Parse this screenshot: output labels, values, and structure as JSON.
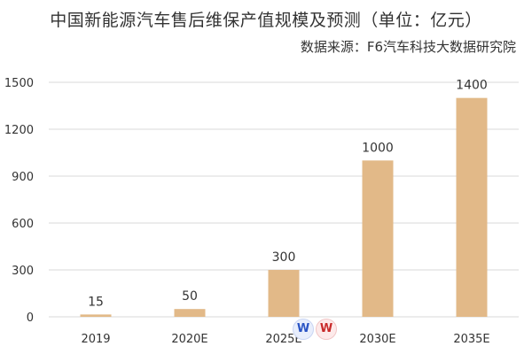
{
  "chart_data": {
    "type": "bar",
    "title": "中国新能源汽车售后维保产值规模及预测（单位：亿元）",
    "source": "数据来源：F6汽车科技大数据研究院",
    "categories": [
      "2019",
      "2020E",
      "2025E",
      "2030E",
      "2035E"
    ],
    "values": [
      15,
      50,
      300,
      1000,
      1400
    ],
    "data_labels": [
      "15",
      "50",
      "300",
      "1000",
      "1400"
    ],
    "ylim": [
      0,
      1500
    ],
    "yticks": [
      0,
      300,
      600,
      900,
      1200,
      1500
    ],
    "ytick_labels": [
      "0",
      "300",
      "600",
      "900",
      "1200",
      "1500"
    ],
    "xlabel": "",
    "ylabel": "",
    "grid": true,
    "bar_color": "#e2b988",
    "grid_color": "#d9d9d9"
  }
}
